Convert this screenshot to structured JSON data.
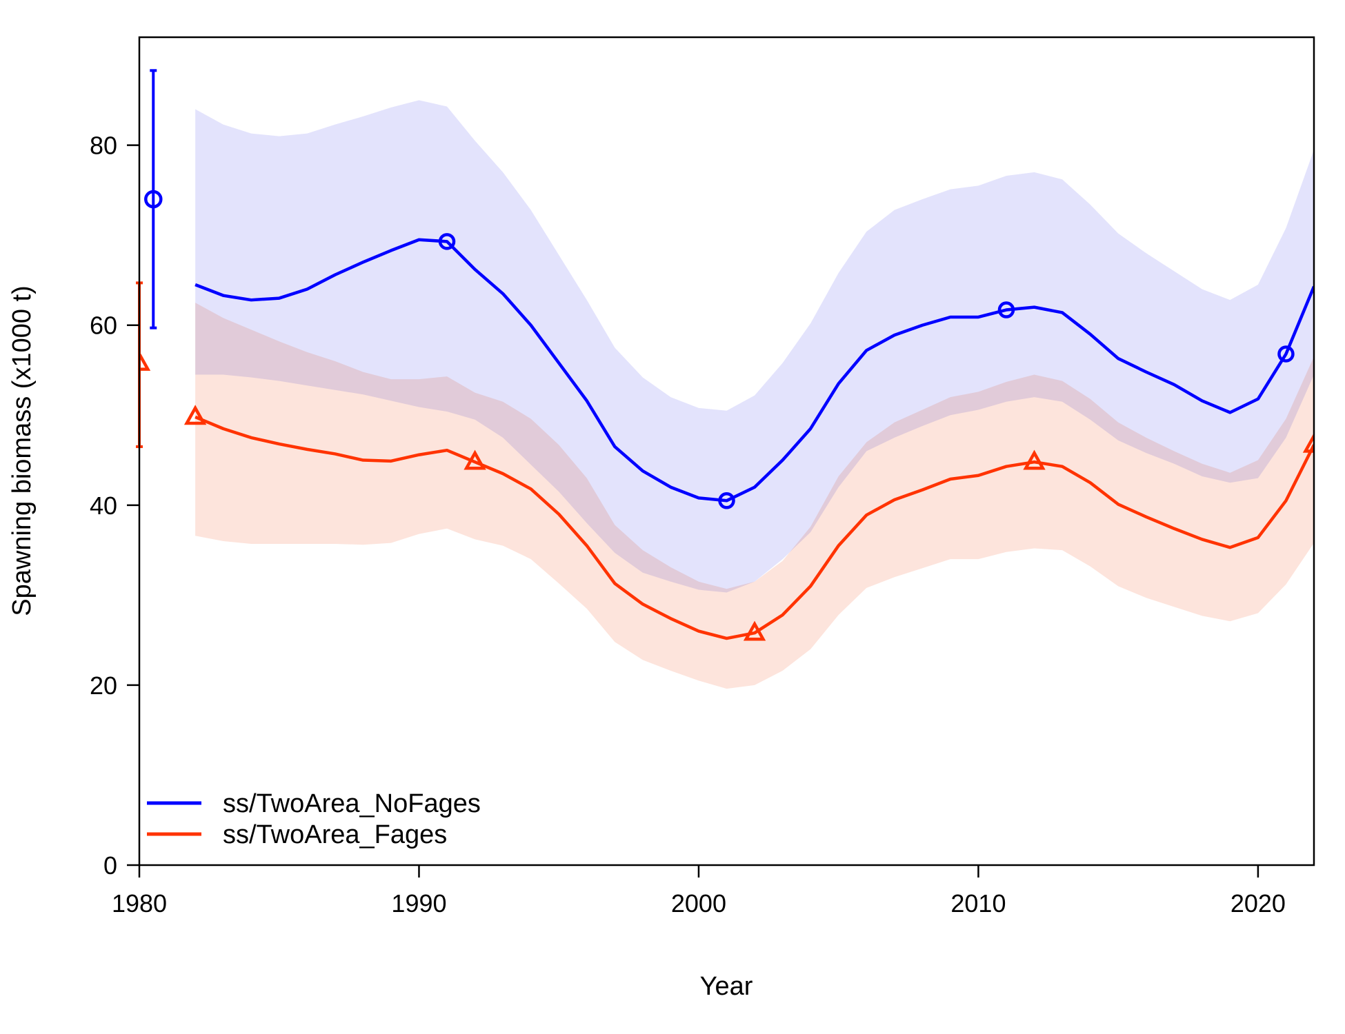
{
  "chart_data": {
    "type": "line",
    "title": "",
    "xlabel": "Year",
    "ylabel": "Spawning biomass (x1000 t)",
    "xlim": [
      1980,
      2022
    ],
    "ylim": [
      0,
      92
    ],
    "x_ticks": [
      1980,
      1990,
      2000,
      2010,
      2020
    ],
    "y_ticks": [
      0,
      20,
      40,
      60,
      80
    ],
    "grid": false,
    "legend_position": "bottom-left",
    "x": [
      1982,
      1983,
      1984,
      1985,
      1986,
      1987,
      1988,
      1989,
      1990,
      1991,
      1992,
      1993,
      1994,
      1995,
      1996,
      1997,
      1998,
      1999,
      2000,
      2001,
      2002,
      2003,
      2004,
      2005,
      2006,
      2007,
      2008,
      2009,
      2010,
      2011,
      2012,
      2013,
      2014,
      2015,
      2016,
      2017,
      2018,
      2019,
      2020,
      2021,
      2022
    ],
    "series": [
      {
        "name": "ss/TwoArea_NoFages",
        "color": "#0000ff",
        "band_color": "#e3e3fc",
        "marker": "circle",
        "values": [
          64.5,
          63.3,
          62.8,
          63.0,
          64.0,
          65.6,
          67.0,
          68.3,
          69.5,
          69.3,
          66.2,
          63.5,
          60.0,
          55.8,
          51.6,
          46.5,
          43.8,
          42.0,
          40.8,
          40.5,
          42.0,
          45.0,
          48.5,
          53.5,
          57.2,
          58.9,
          60.0,
          60.9,
          60.9,
          61.7,
          62.0,
          61.4,
          59.0,
          56.3,
          54.8,
          53.4,
          51.6,
          50.3,
          51.8,
          56.8,
          64.3
        ],
        "lower": [
          54.5,
          54.5,
          54.2,
          53.8,
          53.3,
          52.8,
          52.3,
          51.6,
          50.9,
          50.4,
          49.5,
          47.5,
          44.5,
          41.5,
          38.0,
          34.7,
          32.5,
          31.5,
          30.6,
          30.3,
          31.5,
          34.0,
          37.0,
          42.0,
          46.0,
          47.5,
          48.8,
          50.0,
          50.6,
          51.5,
          52.0,
          51.5,
          49.5,
          47.2,
          45.8,
          44.6,
          43.2,
          42.5,
          43.0,
          47.5,
          54.5
        ],
        "upper": [
          84.0,
          82.3,
          81.3,
          81.0,
          81.3,
          82.3,
          83.2,
          84.2,
          85.0,
          84.3,
          80.5,
          77.0,
          72.8,
          67.8,
          62.8,
          57.5,
          54.2,
          52.0,
          50.8,
          50.5,
          52.2,
          55.8,
          60.2,
          65.8,
          70.4,
          72.8,
          74.0,
          75.1,
          75.5,
          76.6,
          77.0,
          76.2,
          73.4,
          70.2,
          68.0,
          66.0,
          64.0,
          62.8,
          64.5,
          70.8,
          79.5
        ],
        "single_point": {
          "x": 1980.5,
          "value": 74.0,
          "lower": 59.7,
          "upper": 88.3
        },
        "marker_points": [
          {
            "x": 1991,
            "y": 69.3
          },
          {
            "x": 2001,
            "y": 40.5
          },
          {
            "x": 2011,
            "y": 61.7
          },
          {
            "x": 2021,
            "y": 56.8
          }
        ]
      },
      {
        "name": "ss/TwoArea_Fages",
        "color": "#ff3300",
        "band_color": "#fde4dc",
        "marker": "triangle",
        "values": [
          49.8,
          48.5,
          47.5,
          46.8,
          46.2,
          45.7,
          45.0,
          44.9,
          45.6,
          46.1,
          44.8,
          43.5,
          41.8,
          39.0,
          35.5,
          31.3,
          29.0,
          27.4,
          26.0,
          25.2,
          25.8,
          27.8,
          31.0,
          35.5,
          38.9,
          40.6,
          41.7,
          42.9,
          43.3,
          44.3,
          44.8,
          44.3,
          42.5,
          40.1,
          38.7,
          37.4,
          36.2,
          35.3,
          36.4,
          40.5,
          46.7
        ],
        "lower": [
          36.6,
          36.0,
          35.7,
          35.7,
          35.7,
          35.7,
          35.6,
          35.8,
          36.8,
          37.4,
          36.2,
          35.5,
          34.0,
          31.3,
          28.5,
          24.8,
          22.8,
          21.6,
          20.5,
          19.6,
          20.0,
          21.6,
          24.0,
          27.8,
          30.8,
          32.0,
          33.0,
          34.0,
          34.0,
          34.8,
          35.2,
          35.0,
          33.2,
          31.0,
          29.7,
          28.7,
          27.7,
          27.1,
          28.0,
          31.2,
          35.8
        ],
        "upper": [
          62.5,
          60.8,
          59.5,
          58.2,
          57.0,
          56.0,
          54.8,
          54.0,
          54.0,
          54.3,
          52.5,
          51.5,
          49.6,
          46.7,
          43.0,
          37.8,
          35.0,
          33.1,
          31.5,
          30.7,
          31.5,
          33.8,
          37.6,
          43.2,
          47.0,
          49.2,
          50.6,
          52.0,
          52.6,
          53.7,
          54.5,
          53.8,
          51.8,
          49.2,
          47.5,
          46.0,
          44.6,
          43.6,
          45.0,
          49.6,
          56.5
        ],
        "single_point": {
          "x": 1980,
          "value": 55.8,
          "lower": 46.5,
          "upper": 64.7
        },
        "marker_points": [
          {
            "x": 1980,
            "y": 55.8
          },
          {
            "x": 1982,
            "y": 49.8
          },
          {
            "x": 1992,
            "y": 44.8
          },
          {
            "x": 2002,
            "y": 25.8
          },
          {
            "x": 2012,
            "y": 44.8
          },
          {
            "x": 2022,
            "y": 46.7
          }
        ]
      }
    ]
  }
}
